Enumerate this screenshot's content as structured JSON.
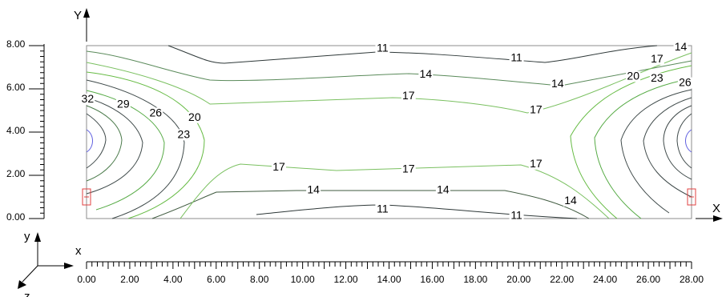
{
  "chart_data": {
    "type": "contour",
    "plan_axes": {
      "x_label": "X",
      "y_label": "Y"
    },
    "triad_axes": {
      "x": "x",
      "y": "y",
      "z": "z"
    },
    "y_ticks": [
      "8.00",
      "6.00",
      "4.00",
      "2.00",
      "0.00"
    ],
    "x_ticks": [
      "0.00",
      "2.00",
      "4.00",
      "6.00",
      "8.00",
      "10.00",
      "12.00",
      "14.00",
      "16.00",
      "18.00",
      "20.00",
      "22.00",
      "24.00",
      "26.00",
      "28.00"
    ],
    "xlim": [
      0,
      28
    ],
    "ylim": [
      0,
      8
    ],
    "domain": {
      "x": [
        0,
        28
      ],
      "y": [
        0,
        8
      ]
    },
    "contour_levels": [
      11,
      14,
      17,
      20,
      23,
      26,
      29,
      32
    ],
    "contour_labels": [
      {
        "text": "11",
        "x": 13.7,
        "y": 7.8
      },
      {
        "text": "11",
        "x": 19.9,
        "y": 7.35
      },
      {
        "text": "11",
        "x": 13.7,
        "y": 0.35
      },
      {
        "text": "11",
        "x": 19.9,
        "y": 0.05
      },
      {
        "text": "14",
        "x": 15.7,
        "y": 6.6
      },
      {
        "text": "14",
        "x": 21.8,
        "y": 6.15
      },
      {
        "text": "14",
        "x": 10.5,
        "y": 1.25
      },
      {
        "text": "14",
        "x": 16.5,
        "y": 1.25
      },
      {
        "text": "14",
        "x": 22.4,
        "y": 0.75
      },
      {
        "text": "17",
        "x": 14.9,
        "y": 5.6
      },
      {
        "text": "17",
        "x": 20.8,
        "y": 4.95
      },
      {
        "text": "17",
        "x": 8.9,
        "y": 2.3
      },
      {
        "text": "17",
        "x": 14.9,
        "y": 2.2
      },
      {
        "text": "17",
        "x": 20.8,
        "y": 2.45
      },
      {
        "text": "20",
        "x": 5.0,
        "y": 4.6
      },
      {
        "text": "20",
        "x": 25.3,
        "y": 6.5
      },
      {
        "text": "23",
        "x": 4.5,
        "y": 3.8
      },
      {
        "text": "23",
        "x": 26.4,
        "y": 6.4
      },
      {
        "text": "26",
        "x": 3.2,
        "y": 4.8
      },
      {
        "text": "26",
        "x": 27.7,
        "y": 6.2
      },
      {
        "text": "29",
        "x": 1.7,
        "y": 5.2
      },
      {
        "text": "32",
        "x": 0.05,
        "y": 5.45
      },
      {
        "text": "17",
        "x": 26.4,
        "y": 7.3
      },
      {
        "text": "14",
        "x": 27.5,
        "y": 7.85
      }
    ],
    "colors": {
      "frame": "#8c8c8c",
      "contour_dark": "#3f4a4a",
      "contour_mid": "#558855",
      "contour_green": "#66bb44",
      "contour_light": "#88cc66",
      "support": "#e04040",
      "center_mark": "#6060e0"
    }
  }
}
